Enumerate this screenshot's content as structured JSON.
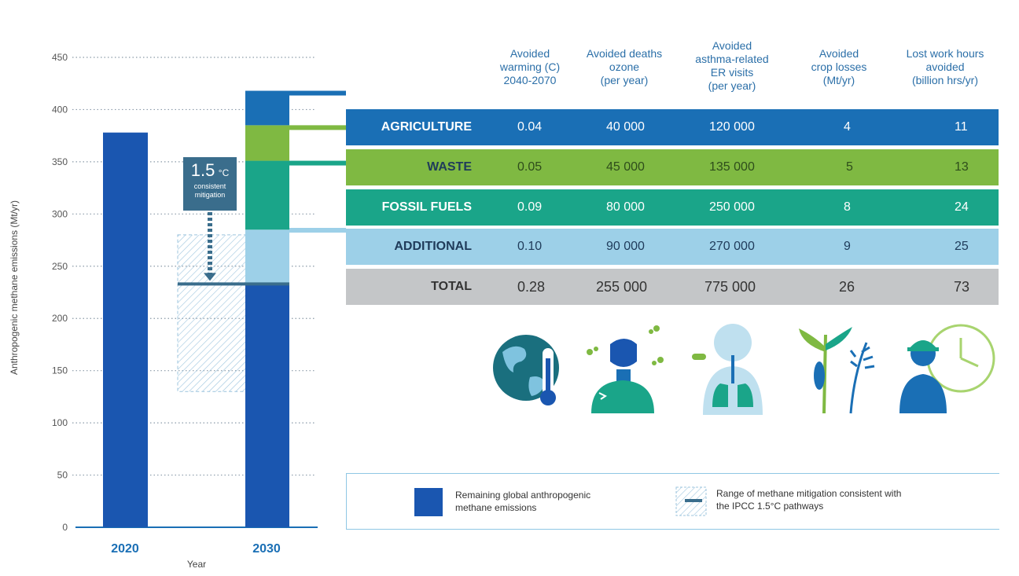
{
  "chart_data": [
    {
      "type": "bar",
      "ylabel": "Anthropogenic methane emissions (Mt/yr)",
      "xlabel": "Year",
      "ylim": [
        0,
        450
      ],
      "yticks": [
        "0",
        "50",
        "100",
        "150",
        "200",
        "250",
        "300",
        "350",
        "400",
        "450"
      ],
      "categories": [
        "2020",
        "2030"
      ],
      "bar_2020": 378,
      "stack_2030": [
        {
          "name": "Remaining global anthropogenic methane emissions",
          "from": 0,
          "to": 233,
          "color": "#1a56b0"
        },
        {
          "name": "ADDITIONAL",
          "from": 233,
          "to": 285,
          "color": "#9dd0e8"
        },
        {
          "name": "FOSSIL FUELS",
          "from": 285,
          "to": 351,
          "color": "#1aa589"
        },
        {
          "name": "WASTE",
          "from": 351,
          "to": 385,
          "color": "#7fb942"
        },
        {
          "name": "AGRICULTURE",
          "from": 385,
          "to": 418,
          "color": "#1a6fb5"
        }
      ],
      "mitigation_range": [
        130,
        280
      ],
      "pathway_level": 233,
      "annotation": {
        "value": "1.5",
        "unit": "°C",
        "text": "consistent mitigation"
      },
      "grid": true
    },
    {
      "type": "table",
      "columns": [
        "Avoided warming (C) 2040-2070",
        "Avoided deaths ozone (per year)",
        "Avoided asthma-related ER visits (per year)",
        "Avoided crop losses (Mt/yr)",
        "Lost work hours avoided (billion hrs/yr)"
      ],
      "rows": [
        {
          "label": "AGRICULTURE",
          "values": [
            "0.04",
            "40 000",
            "120 000",
            "4",
            "11"
          ],
          "color": "#1a6fb5"
        },
        {
          "label": "WASTE",
          "values": [
            "0.05",
            "45 000",
            "135 000",
            "5",
            "13"
          ],
          "color": "#7fb942"
        },
        {
          "label": "FOSSIL FUELS",
          "values": [
            "0.09",
            "80 000",
            "250 000",
            "8",
            "24"
          ],
          "color": "#1aa589"
        },
        {
          "label": "ADDITIONAL",
          "values": [
            "0.10",
            "90 000",
            "270 000",
            "9",
            "25"
          ],
          "color": "#9dd0e8"
        },
        {
          "label": "TOTAL",
          "values": [
            "0.28",
            "255 000",
            "775 000",
            "26",
            "73"
          ],
          "color": "#c4c6c8"
        }
      ]
    }
  ],
  "header": {
    "col1": [
      "Avoided",
      "warming (C)",
      "2040-2070"
    ],
    "col2": [
      "Avoided deaths",
      "ozone",
      "(per year)"
    ],
    "col3": [
      "Avoided",
      "asthma-related",
      "ER visits",
      "(per year)"
    ],
    "col4": [
      "Avoided",
      "crop losses",
      "(Mt/yr)"
    ],
    "col5": [
      "Lost work hours",
      "avoided",
      "(billion hrs/yr)"
    ]
  },
  "legend": {
    "item1": [
      "Remaining global anthropogenic",
      "methane emissions"
    ],
    "item2": [
      "Range of methane mitigation consistent with",
      "the IPCC 1.5°C pathways"
    ]
  },
  "icons": [
    "globe-thermometer-icon",
    "person-ozone-icon",
    "lungs-icon",
    "crops-icon",
    "worker-clock-icon"
  ]
}
